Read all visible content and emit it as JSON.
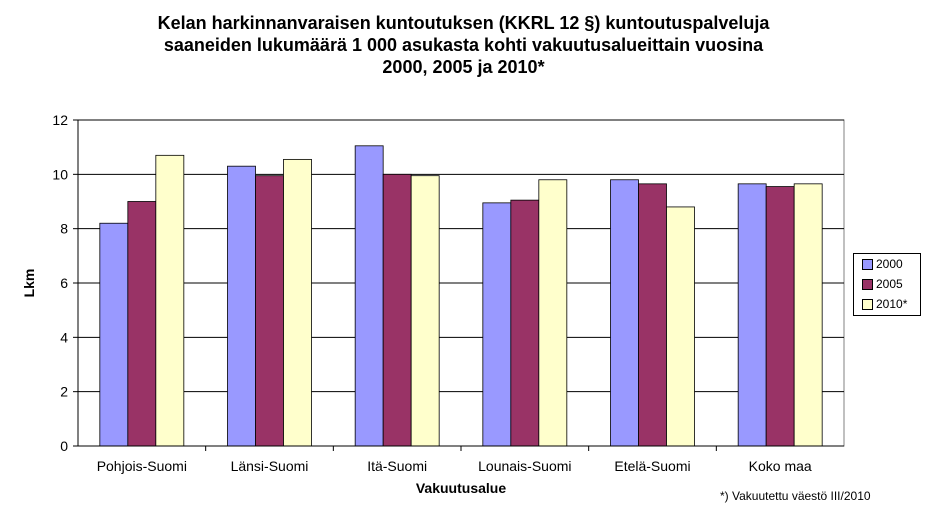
{
  "chart_data": {
    "type": "bar",
    "title_lines": [
      "Kelan harkinnanvaraisen kuntoutuksen (KKRL 12 §) kuntoutuspalveluja",
      "saaneiden lukumäärä 1 000 asukasta kohti vakuutusalueittain vuosina",
      "2000, 2005 ja 2010*"
    ],
    "xlabel": "Vakuutusalue",
    "ylabel": "Lkm",
    "ylim": [
      0,
      12
    ],
    "yticks": [
      0,
      2,
      4,
      6,
      8,
      10,
      12
    ],
    "grid": true,
    "legend_position": "right",
    "categories": [
      "Pohjois-Suomi",
      "Länsi-Suomi",
      "Itä-Suomi",
      "Lounais-Suomi",
      "Etelä-Suomi",
      "Koko maa"
    ],
    "series": [
      {
        "name": "2000",
        "color": "#9999ff",
        "values": [
          8.2,
          10.3,
          11.05,
          8.95,
          9.8,
          9.65
        ]
      },
      {
        "name": "2005",
        "color": "#993366",
        "values": [
          9.0,
          9.95,
          10.0,
          9.05,
          9.65,
          9.55
        ]
      },
      {
        "name": "2010*",
        "color": "#ffffcc",
        "values": [
          10.7,
          10.55,
          9.95,
          9.8,
          8.8,
          9.65
        ]
      }
    ],
    "footnote": "*) Vakuutettu väestö III/2010"
  }
}
